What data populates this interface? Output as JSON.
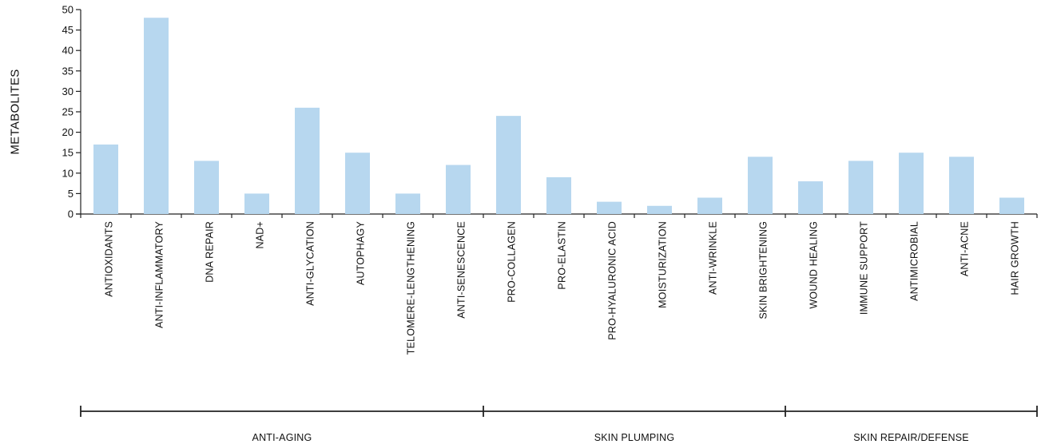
{
  "chart_data": {
    "type": "bar",
    "ylabel": "METABOLITES",
    "xlabel": "",
    "ylim": [
      0,
      50
    ],
    "yticks": [
      0,
      5,
      10,
      15,
      20,
      25,
      30,
      35,
      40,
      45,
      50
    ],
    "grid": false,
    "legend": "none",
    "bar_color": "#b7d7ef",
    "categories": [
      "ANTIOXIDANTS",
      "ANTI-INFLAMMATORY",
      "DNA REPAIR",
      "NAD+",
      "ANTI-GLYCATION",
      "AUTOPHAGY",
      "TELOMERE-LENGTHENING",
      "ANTI-SENESCENCE",
      "PRO-COLLAGEN",
      "PRO-ELASTIN",
      "PRO-HYALURONIC ACID",
      "MOISTURIZATION",
      "ANTI-WRINKLE",
      "SKIN BRIGHTENING",
      "WOUND HEALING",
      "IMMUNE SUPPORT",
      "ANTIMICROBIAL",
      "ANTI-ACNE",
      "HAIR GROWTH"
    ],
    "values": [
      17,
      48,
      13,
      5,
      26,
      15,
      5,
      12,
      24,
      9,
      3,
      2,
      4,
      14,
      8,
      13,
      15,
      14,
      4
    ],
    "groups": [
      {
        "label": "ANTI-AGING",
        "count": 8
      },
      {
        "label": "SKIN PLUMPING",
        "count": 6
      },
      {
        "label": "SKIN REPAIR/DEFENSE",
        "count": 5
      }
    ]
  }
}
